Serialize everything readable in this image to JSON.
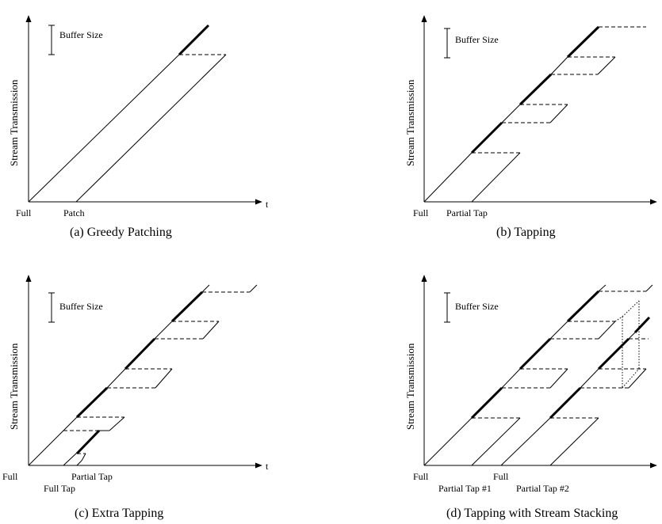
{
  "buffer_size_label": "Buffer Size",
  "y_axis_label": "Stream Transmission",
  "x_axis_label": "t",
  "panels": {
    "a": {
      "caption": "(a) Greedy Patching",
      "labels": [
        "Full",
        "Patch"
      ]
    },
    "b": {
      "caption": "(b) Tapping",
      "labels": [
        "Full",
        "Partial Tap"
      ]
    },
    "c": {
      "caption": "(c) Extra Tapping",
      "labels": [
        "Full",
        "Full Tap",
        "Partial Tap"
      ]
    },
    "d": {
      "caption": "(d) Tapping with Stream Stacking",
      "labels": [
        "Full",
        "Partial Tap #1",
        "Full",
        "Partial Tap #2"
      ]
    }
  }
}
